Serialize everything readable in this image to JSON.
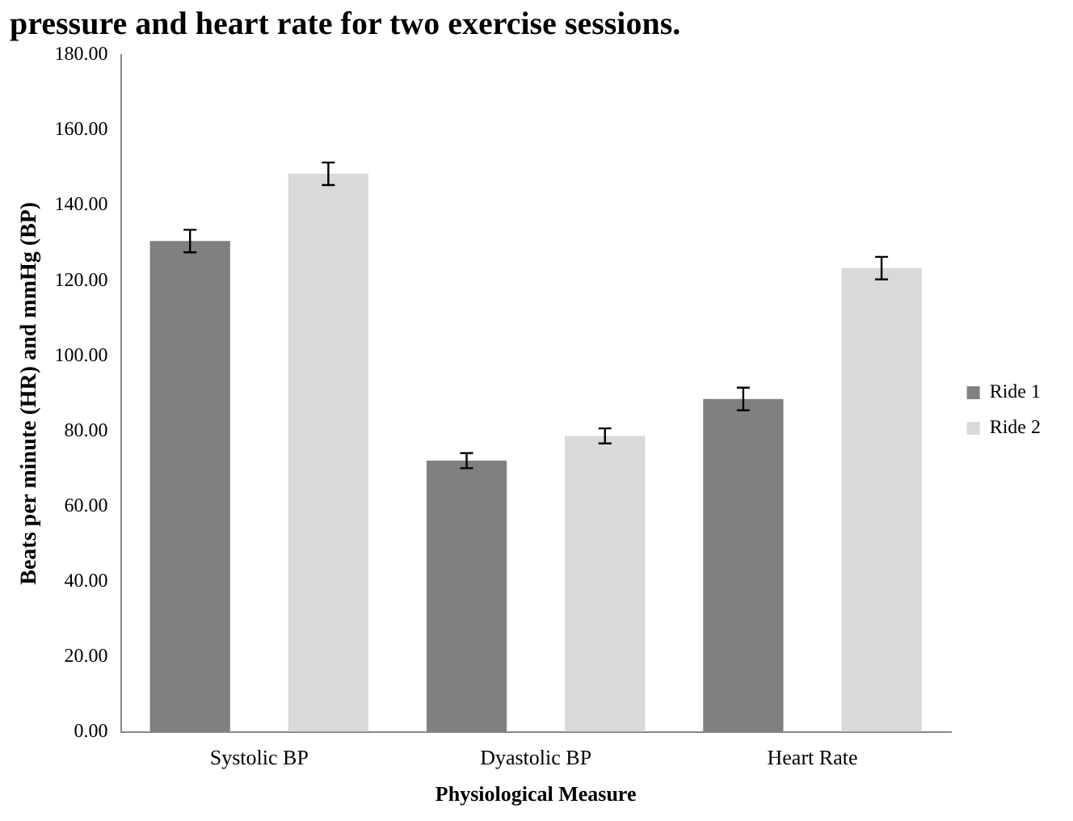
{
  "chart_data": {
    "type": "bar",
    "title": "pressure and heart rate for two exercise sessions.",
    "xlabel": "Physiological Measure",
    "ylabel": "Beats per minute (HR) and mmHg (BP)",
    "categories": [
      "Systolic BP",
      "Dyastolic BP",
      "Heart Rate"
    ],
    "series": [
      {
        "name": "Ride 1",
        "color": "#808080",
        "values": [
          130.5,
          72.1,
          88.5
        ],
        "errors": [
          3,
          2,
          3
        ]
      },
      {
        "name": "Ride 2",
        "color": "#d9d9d9",
        "values": [
          148.4,
          78.7,
          123.3
        ],
        "errors": [
          3,
          2,
          3
        ]
      }
    ],
    "ylim": [
      0,
      180
    ],
    "yticks": [
      {
        "value": 0,
        "label": "0.00"
      },
      {
        "value": 20,
        "label": "20.00"
      },
      {
        "value": 40,
        "label": "40.00"
      },
      {
        "value": 60,
        "label": "60.00"
      },
      {
        "value": 80,
        "label": "80.00"
      },
      {
        "value": 100,
        "label": "100.00"
      },
      {
        "value": 120,
        "label": "120.00"
      },
      {
        "value": 140,
        "label": "140.00"
      },
      {
        "value": 160,
        "label": "160.00"
      },
      {
        "value": 180,
        "label": "180.00"
      }
    ],
    "grid": false,
    "legend": "right"
  }
}
